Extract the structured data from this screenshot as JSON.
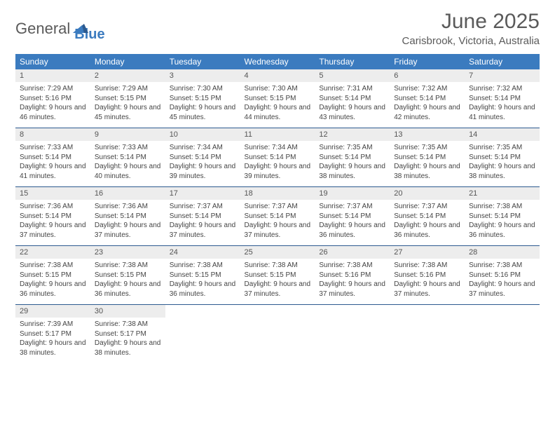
{
  "brand": {
    "part1": "General",
    "part2": "Blue"
  },
  "title": "June 2025",
  "location": "Carisbrook, Victoria, Australia",
  "colors": {
    "header_bg": "#3b7bbf",
    "header_text": "#ffffff",
    "daynum_bg": "#ededed",
    "week_border": "#2c5a8f",
    "text": "#444444",
    "title_color": "#5a5a5a"
  },
  "typography": {
    "month_title_fontsize": 30,
    "location_fontsize": 15,
    "day_header_fontsize": 12,
    "daynum_fontsize": 11,
    "detail_fontsize": 10
  },
  "day_names": [
    "Sunday",
    "Monday",
    "Tuesday",
    "Wednesday",
    "Thursday",
    "Friday",
    "Saturday"
  ],
  "weeks": [
    [
      {
        "n": "1",
        "sr": "7:29 AM",
        "ss": "5:16 PM",
        "dl": "9 hours and 46 minutes."
      },
      {
        "n": "2",
        "sr": "7:29 AM",
        "ss": "5:15 PM",
        "dl": "9 hours and 45 minutes."
      },
      {
        "n": "3",
        "sr": "7:30 AM",
        "ss": "5:15 PM",
        "dl": "9 hours and 45 minutes."
      },
      {
        "n": "4",
        "sr": "7:30 AM",
        "ss": "5:15 PM",
        "dl": "9 hours and 44 minutes."
      },
      {
        "n": "5",
        "sr": "7:31 AM",
        "ss": "5:14 PM",
        "dl": "9 hours and 43 minutes."
      },
      {
        "n": "6",
        "sr": "7:32 AM",
        "ss": "5:14 PM",
        "dl": "9 hours and 42 minutes."
      },
      {
        "n": "7",
        "sr": "7:32 AM",
        "ss": "5:14 PM",
        "dl": "9 hours and 41 minutes."
      }
    ],
    [
      {
        "n": "8",
        "sr": "7:33 AM",
        "ss": "5:14 PM",
        "dl": "9 hours and 41 minutes."
      },
      {
        "n": "9",
        "sr": "7:33 AM",
        "ss": "5:14 PM",
        "dl": "9 hours and 40 minutes."
      },
      {
        "n": "10",
        "sr": "7:34 AM",
        "ss": "5:14 PM",
        "dl": "9 hours and 39 minutes."
      },
      {
        "n": "11",
        "sr": "7:34 AM",
        "ss": "5:14 PM",
        "dl": "9 hours and 39 minutes."
      },
      {
        "n": "12",
        "sr": "7:35 AM",
        "ss": "5:14 PM",
        "dl": "9 hours and 38 minutes."
      },
      {
        "n": "13",
        "sr": "7:35 AM",
        "ss": "5:14 PM",
        "dl": "9 hours and 38 minutes."
      },
      {
        "n": "14",
        "sr": "7:35 AM",
        "ss": "5:14 PM",
        "dl": "9 hours and 38 minutes."
      }
    ],
    [
      {
        "n": "15",
        "sr": "7:36 AM",
        "ss": "5:14 PM",
        "dl": "9 hours and 37 minutes."
      },
      {
        "n": "16",
        "sr": "7:36 AM",
        "ss": "5:14 PM",
        "dl": "9 hours and 37 minutes."
      },
      {
        "n": "17",
        "sr": "7:37 AM",
        "ss": "5:14 PM",
        "dl": "9 hours and 37 minutes."
      },
      {
        "n": "18",
        "sr": "7:37 AM",
        "ss": "5:14 PM",
        "dl": "9 hours and 37 minutes."
      },
      {
        "n": "19",
        "sr": "7:37 AM",
        "ss": "5:14 PM",
        "dl": "9 hours and 36 minutes."
      },
      {
        "n": "20",
        "sr": "7:37 AM",
        "ss": "5:14 PM",
        "dl": "9 hours and 36 minutes."
      },
      {
        "n": "21",
        "sr": "7:38 AM",
        "ss": "5:14 PM",
        "dl": "9 hours and 36 minutes."
      }
    ],
    [
      {
        "n": "22",
        "sr": "7:38 AM",
        "ss": "5:15 PM",
        "dl": "9 hours and 36 minutes."
      },
      {
        "n": "23",
        "sr": "7:38 AM",
        "ss": "5:15 PM",
        "dl": "9 hours and 36 minutes."
      },
      {
        "n": "24",
        "sr": "7:38 AM",
        "ss": "5:15 PM",
        "dl": "9 hours and 36 minutes."
      },
      {
        "n": "25",
        "sr": "7:38 AM",
        "ss": "5:15 PM",
        "dl": "9 hours and 37 minutes."
      },
      {
        "n": "26",
        "sr": "7:38 AM",
        "ss": "5:16 PM",
        "dl": "9 hours and 37 minutes."
      },
      {
        "n": "27",
        "sr": "7:38 AM",
        "ss": "5:16 PM",
        "dl": "9 hours and 37 minutes."
      },
      {
        "n": "28",
        "sr": "7:38 AM",
        "ss": "5:16 PM",
        "dl": "9 hours and 37 minutes."
      }
    ],
    [
      {
        "n": "29",
        "sr": "7:39 AM",
        "ss": "5:17 PM",
        "dl": "9 hours and 38 minutes."
      },
      {
        "n": "30",
        "sr": "7:38 AM",
        "ss": "5:17 PM",
        "dl": "9 hours and 38 minutes."
      },
      null,
      null,
      null,
      null,
      null
    ]
  ],
  "labels": {
    "sunrise": "Sunrise: ",
    "sunset": "Sunset: ",
    "daylight": "Daylight: "
  }
}
